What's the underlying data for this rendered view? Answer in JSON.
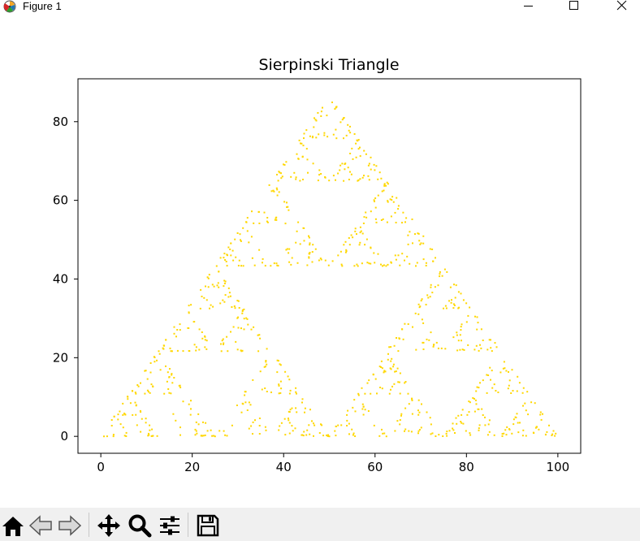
{
  "window": {
    "title": "Figure 1"
  },
  "toolbar": {
    "buttons": [
      {
        "icon": "home-icon"
      },
      {
        "icon": "back-arrow-icon"
      },
      {
        "icon": "forward-arrow-icon"
      },
      {
        "icon": "pan-move-icon"
      },
      {
        "icon": "zoom-magnifier-icon"
      },
      {
        "icon": "configure-subplots-icon"
      },
      {
        "icon": "save-floppy-icon"
      }
    ]
  },
  "colors": {
    "points": "#ffd700",
    "axes": "#000000",
    "toolbar_bg": "#f0f0f0"
  },
  "chart_data": {
    "type": "scatter",
    "title": "Sierpinski Triangle",
    "xlabel": "",
    "ylabel": "",
    "xlim": [
      -5,
      105
    ],
    "ylim": [
      -4.3,
      90.9
    ],
    "xticks": [
      0,
      20,
      40,
      60,
      80,
      100
    ],
    "yticks": [
      0,
      20,
      40,
      60,
      80
    ],
    "xtick_labels": [
      "0",
      "20",
      "40",
      "60",
      "80",
      "100"
    ],
    "ytick_labels": [
      "0",
      "20",
      "40",
      "60",
      "80"
    ],
    "grid": false,
    "vertices": [
      [
        0,
        0
      ],
      [
        100,
        0
      ],
      [
        50,
        86.6
      ]
    ],
    "num_points": 1000,
    "marker_size": 1,
    "color": "#ffd700"
  }
}
